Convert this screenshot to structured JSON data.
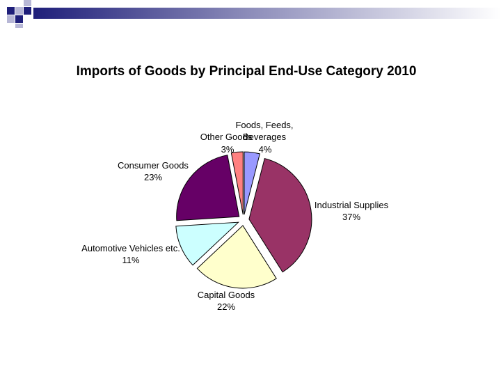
{
  "slide": {
    "decor_colors": {
      "dark": "#1f1f7a",
      "light": "#b7b7d6"
    }
  },
  "chart_data": {
    "type": "pie",
    "title": "Imports of Goods by Principal End-Use Category 2010",
    "slices": [
      {
        "label_lines": [
          "Foods, Feeds,",
          "Beverages"
        ],
        "value": 4,
        "value_label": "4%",
        "color": "#9999ff"
      },
      {
        "label_lines": [
          "Industrial Supplies"
        ],
        "value": 37,
        "value_label": "37%",
        "color": "#993366"
      },
      {
        "label_lines": [
          "Capital Goods"
        ],
        "value": 22,
        "value_label": "22%",
        "color": "#ffffcc"
      },
      {
        "label_lines": [
          "Automotive Vehicles etc."
        ],
        "value": 11,
        "value_label": "11%",
        "color": "#ccffff"
      },
      {
        "label_lines": [
          "Consumer Goods"
        ],
        "value": 23,
        "value_label": "23%",
        "color": "#660066"
      },
      {
        "label_lines": [
          "Other Goods"
        ],
        "value": 3,
        "value_label": "3%",
        "color": "#ff8080"
      }
    ],
    "start_angle_deg": 0,
    "exploded": true
  }
}
